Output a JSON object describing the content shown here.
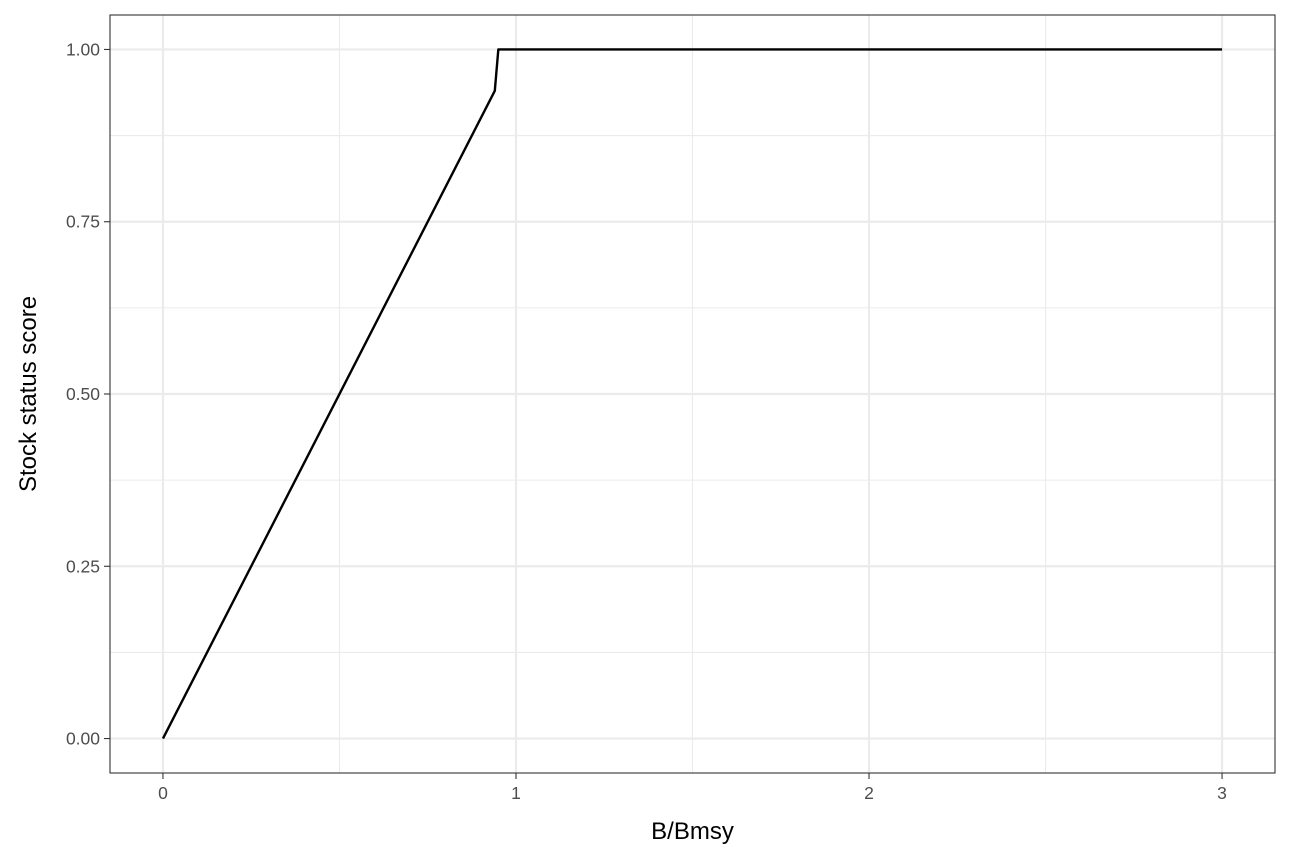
{
  "chart_data": {
    "type": "line",
    "title": "",
    "xlabel": "B/Bmsy",
    "ylabel": "Stock status score",
    "xlim": [
      -0.15,
      3.15
    ],
    "ylim": [
      -0.05,
      1.05
    ],
    "x_ticks": [
      0,
      1,
      2,
      3
    ],
    "x_tick_labels": [
      "0",
      "1",
      "2",
      "3"
    ],
    "x_minor_ticks": [
      0.5,
      1.5,
      2.5
    ],
    "y_ticks": [
      0,
      0.25,
      0.5,
      0.75,
      1
    ],
    "y_tick_labels": [
      "0.00",
      "0.25",
      "0.50",
      "0.75",
      "1.00"
    ],
    "y_minor_ticks": [
      0.125,
      0.375,
      0.625,
      0.875
    ],
    "grid": true,
    "legend": "none",
    "series": [
      {
        "color": "#000000",
        "x": [
          0,
          0.94,
          0.95,
          3
        ],
        "y": [
          0,
          0.94,
          1,
          1
        ]
      }
    ]
  }
}
